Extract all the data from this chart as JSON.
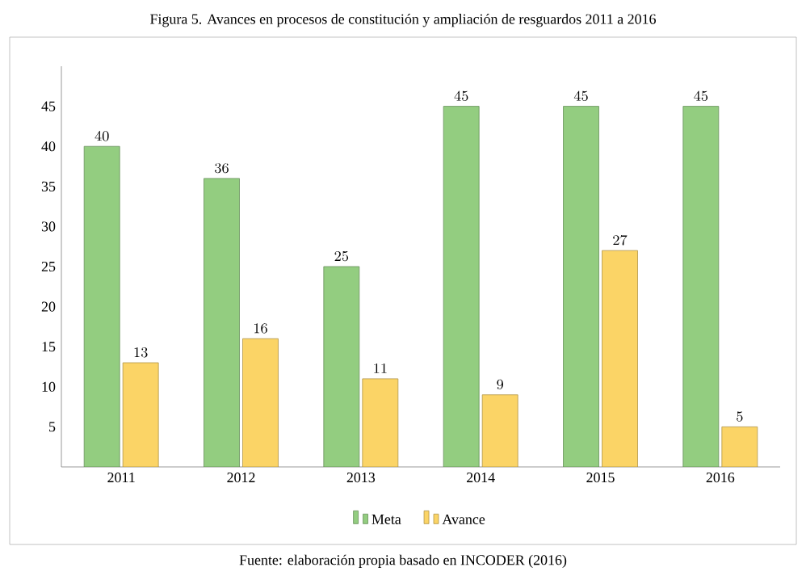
{
  "chart_data": {
    "type": "bar",
    "title": "Figura 5. Avances en procesos de constitución y ampliación de resguardos 2011 a 2016",
    "categories": [
      "2011",
      "2012",
      "2013",
      "2014",
      "2015",
      "2016"
    ],
    "series": [
      {
        "name": "Meta",
        "color": "#93cd80",
        "values": [
          40,
          36,
          25,
          45,
          45,
          45
        ]
      },
      {
        "name": "Avance",
        "color": "#fbd466",
        "values": [
          13,
          16,
          11,
          9,
          27,
          5
        ]
      }
    ],
    "ylim": [
      0,
      50
    ],
    "yticks": [
      5,
      10,
      15,
      20,
      25,
      30,
      35,
      40,
      45
    ],
    "data_labels": true,
    "legend": "bottom",
    "grid": false,
    "annotations": [
      "Fuente: elaboración propia basado en INCODER (2016)"
    ]
  }
}
